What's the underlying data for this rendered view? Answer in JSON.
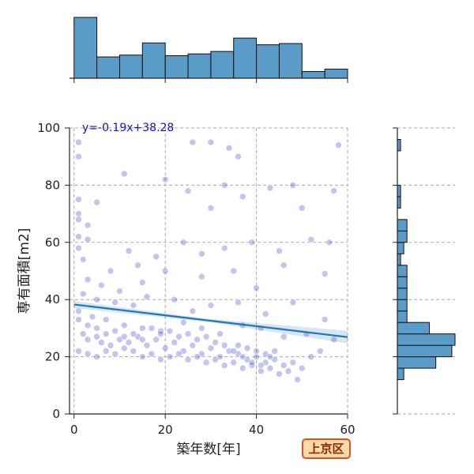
{
  "chart_data": {
    "type": "scatter",
    "title": "",
    "xlabel": "築年数[年]",
    "ylabel": "専有面積[m2]",
    "xlim": [
      -1,
      60
    ],
    "ylim": [
      0,
      100
    ],
    "x_ticks": [
      "0",
      "20",
      "40",
      "60"
    ],
    "y_ticks": [
      "0",
      "20",
      "40",
      "60",
      "80",
      "100"
    ],
    "grid": true,
    "point_color": "#2a2ac8",
    "trend_color": "#1f77b4",
    "hist_color": "#5b9bc8",
    "regression": {
      "slope": -0.19,
      "intercept": 38.28,
      "label": "y=-0.19x+38.28"
    },
    "x_histogram": {
      "bin_edges": [
        0,
        5,
        10,
        15,
        20,
        25,
        30,
        35,
        40,
        45,
        50,
        55,
        60
      ],
      "counts": [
        100,
        35,
        38,
        58,
        37,
        40,
        44,
        66,
        55,
        57,
        11,
        15
      ]
    },
    "y_histogram": {
      "bin_edges": [
        12,
        16,
        20,
        24,
        28,
        32,
        36,
        40,
        44,
        48,
        52,
        56,
        60,
        64,
        68,
        72,
        76,
        80,
        84,
        88,
        92,
        96
      ],
      "counts": [
        2,
        12,
        17,
        18,
        10,
        3,
        3,
        3,
        3,
        3,
        1,
        2,
        3,
        3,
        0,
        1,
        1,
        0,
        0,
        0,
        1
      ]
    },
    "points": [
      [
        1,
        95
      ],
      [
        1,
        90
      ],
      [
        11,
        84
      ],
      [
        34,
        93
      ],
      [
        58,
        94
      ],
      [
        26,
        95
      ],
      [
        30,
        95
      ],
      [
        36,
        90
      ],
      [
        20,
        82
      ],
      [
        33,
        80
      ],
      [
        43,
        79
      ],
      [
        48,
        80
      ],
      [
        57,
        78
      ],
      [
        1,
        75
      ],
      [
        5,
        74
      ],
      [
        25,
        78
      ],
      [
        30,
        72
      ],
      [
        37,
        76
      ],
      [
        50,
        72
      ],
      [
        1,
        70
      ],
      [
        1,
        68
      ],
      [
        3,
        66
      ],
      [
        1,
        62
      ],
      [
        3,
        61
      ],
      [
        12,
        57
      ],
      [
        14,
        52
      ],
      [
        18,
        55
      ],
      [
        24,
        60
      ],
      [
        28,
        56
      ],
      [
        33,
        58
      ],
      [
        39,
        60
      ],
      [
        45,
        57
      ],
      [
        52,
        61
      ],
      [
        56,
        60
      ],
      [
        1,
        58
      ],
      [
        2,
        54
      ],
      [
        8,
        50
      ],
      [
        3,
        47
      ],
      [
        6,
        45
      ],
      [
        10,
        43
      ],
      [
        15,
        46
      ],
      [
        20,
        50
      ],
      [
        28,
        48
      ],
      [
        35,
        50
      ],
      [
        40,
        44
      ],
      [
        46,
        52
      ],
      [
        55,
        49
      ],
      [
        2,
        42
      ],
      [
        5,
        40
      ],
      [
        9,
        39
      ],
      [
        13,
        38
      ],
      [
        16,
        41
      ],
      [
        22,
        40
      ],
      [
        26,
        36
      ],
      [
        30,
        38
      ],
      [
        36,
        39
      ],
      [
        42,
        35
      ],
      [
        48,
        39
      ],
      [
        55,
        33
      ],
      [
        1,
        36
      ],
      [
        4,
        34
      ],
      [
        7,
        33
      ],
      [
        11,
        31
      ],
      [
        15,
        30
      ],
      [
        19,
        29
      ],
      [
        24,
        32
      ],
      [
        28,
        30
      ],
      [
        32,
        28
      ],
      [
        37,
        31
      ],
      [
        41,
        30
      ],
      [
        46,
        27
      ],
      [
        51,
        28
      ],
      [
        57,
        26
      ],
      [
        2,
        28
      ],
      [
        3,
        26
      ],
      [
        5,
        27
      ],
      [
        6,
        25
      ],
      [
        8,
        24
      ],
      [
        10,
        26
      ],
      [
        12,
        25
      ],
      [
        14,
        27
      ],
      [
        16,
        24
      ],
      [
        18,
        26
      ],
      [
        20,
        23
      ],
      [
        22,
        25
      ],
      [
        24,
        22
      ],
      [
        26,
        24
      ],
      [
        28,
        21
      ],
      [
        30,
        23
      ],
      [
        32,
        20
      ],
      [
        34,
        22
      ],
      [
        36,
        21
      ],
      [
        38,
        19
      ],
      [
        40,
        20
      ],
      [
        42,
        18
      ],
      [
        44,
        19
      ],
      [
        46,
        17
      ],
      [
        48,
        18
      ],
      [
        50,
        16
      ],
      [
        52,
        20
      ],
      [
        54,
        22
      ],
      [
        1,
        22
      ],
      [
        3,
        21
      ],
      [
        5,
        20
      ],
      [
        7,
        22
      ],
      [
        9,
        21
      ],
      [
        11,
        23
      ],
      [
        13,
        22
      ],
      [
        15,
        20
      ],
      [
        17,
        21
      ],
      [
        19,
        19
      ],
      [
        21,
        20
      ],
      [
        23,
        21
      ],
      [
        25,
        19
      ],
      [
        27,
        20
      ],
      [
        29,
        18
      ],
      [
        31,
        19
      ],
      [
        33,
        17
      ],
      [
        35,
        18
      ],
      [
        37,
        16
      ],
      [
        39,
        17
      ],
      [
        41,
        15
      ],
      [
        43,
        16
      ],
      [
        45,
        14
      ],
      [
        47,
        15
      ],
      [
        49,
        12
      ],
      [
        36,
        24
      ],
      [
        38,
        23
      ],
      [
        40,
        22
      ],
      [
        42,
        21
      ],
      [
        44,
        22
      ],
      [
        39,
        18
      ],
      [
        41,
        17
      ],
      [
        43,
        20
      ],
      [
        37,
        20
      ],
      [
        35,
        22
      ],
      [
        33,
        24
      ],
      [
        31,
        25
      ],
      [
        29,
        27
      ],
      [
        27,
        26
      ],
      [
        25,
        28
      ],
      [
        23,
        27
      ],
      [
        21,
        29
      ],
      [
        19,
        28
      ],
      [
        17,
        30
      ],
      [
        15,
        26
      ],
      [
        13,
        28
      ],
      [
        11,
        27
      ],
      [
        9,
        29
      ],
      [
        7,
        28
      ],
      [
        5,
        30
      ],
      [
        3,
        31
      ],
      [
        1,
        33
      ]
    ]
  },
  "badge": {
    "label": "上京区"
  }
}
